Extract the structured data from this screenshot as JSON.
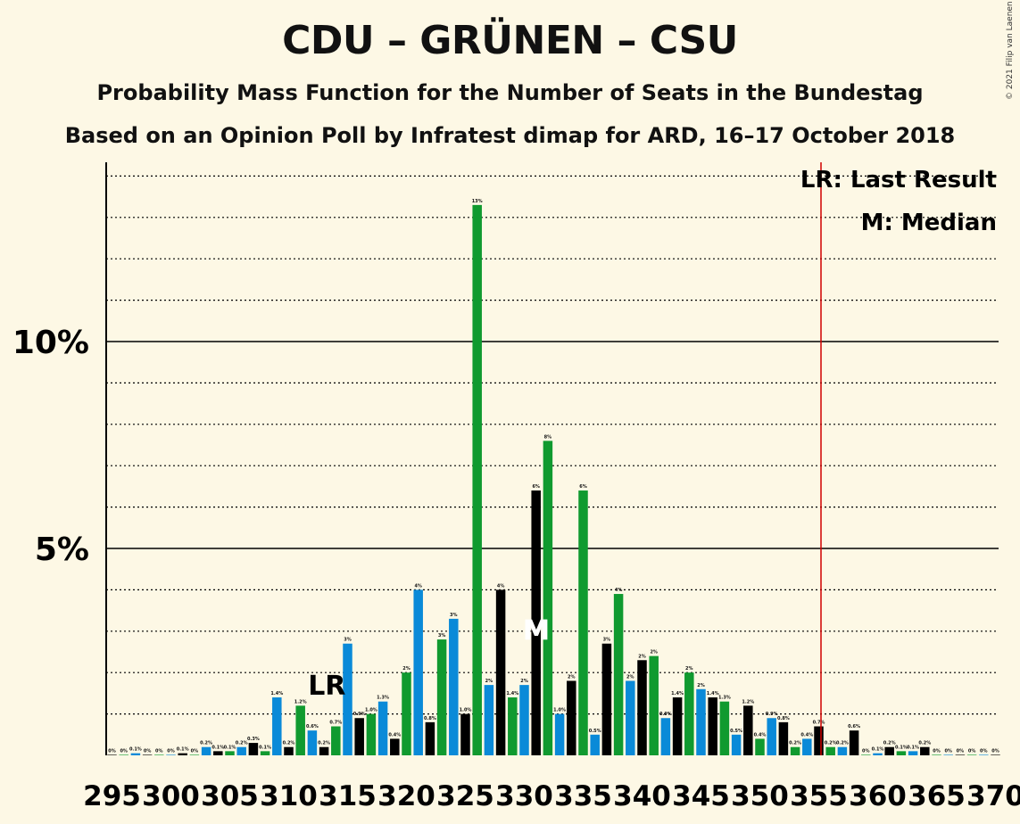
{
  "title": "CDU – GRÜNEN – CSU",
  "subtitle": "Probability Mass Function for the Number of Seats in the Bundestag",
  "subtitle2": "Based on an Opinion Poll by Infratest dimap for ARD, 16–17 October 2018",
  "credit": "© 2021 Filip van Laenen",
  "legend": {
    "last_result": "LR: Last Result",
    "median": "M: Median"
  },
  "markers": {
    "last_result_label": "LR",
    "last_result_seat": 314,
    "median_label": "M",
    "median_seat": 332,
    "majority_line_seat": 355
  },
  "colors": {
    "background": "#fdf8e5",
    "cdu": "#000000",
    "greens": "#109a2f",
    "csu": "#0a8ad8",
    "majority_line": "#d00000"
  },
  "chart_data": {
    "type": "bar",
    "xlabel": "",
    "ylabel": "",
    "x_tick_labels": [
      "295",
      "300",
      "305",
      "310",
      "315",
      "320",
      "325",
      "330",
      "335",
      "340",
      "345",
      "350",
      "355",
      "360",
      "365",
      "370"
    ],
    "y_tick_labels": [
      {
        "value": 5,
        "label": "5%"
      },
      {
        "value": 10,
        "label": "10%"
      }
    ],
    "ylim": [
      0,
      14.3
    ],
    "grid": "dotted every 1%, solid at 5% and 10%",
    "series": [
      {
        "x": [
          295,
          296,
          297,
          298,
          299,
          300,
          301,
          302,
          303,
          304,
          305,
          306,
          307,
          308,
          309,
          310,
          311,
          312,
          313,
          314,
          315,
          316,
          317,
          318,
          319,
          320,
          321,
          322,
          323,
          324,
          325,
          326,
          327,
          328,
          329,
          330,
          331,
          332,
          333,
          334,
          335,
          336,
          337,
          338,
          339,
          340,
          341,
          342,
          343,
          344,
          345,
          346,
          347,
          348,
          349,
          350,
          351,
          352,
          353,
          354,
          355,
          356,
          357,
          358,
          359,
          360,
          361,
          362,
          363,
          364,
          365,
          366,
          367,
          368,
          369,
          370
        ],
        "values": [
          0.01,
          0.01,
          0.05,
          0.01,
          0.01,
          0.01,
          0.05,
          0.01,
          0.2,
          0.1,
          0.1,
          0.2,
          0.3,
          0.1,
          1.4,
          0.2,
          1.2,
          0.6,
          0.2,
          0.7,
          2.7,
          0.9,
          1.0,
          1.3,
          0.4,
          2.0,
          4.0,
          0.8,
          2.8,
          3.3,
          1.0,
          13.3,
          1.7,
          4.0,
          1.4,
          1.7,
          6.4,
          7.6,
          1.0,
          1.8,
          6.4,
          0.5,
          2.7,
          3.9,
          1.8,
          2.3,
          2.4,
          0.9,
          1.4,
          2.0,
          1.6,
          1.4,
          1.3,
          0.5,
          1.2,
          0.4,
          0.9,
          0.8,
          0.2,
          0.4,
          0.7,
          0.2,
          0.2,
          0.6,
          0.01,
          0.05,
          0.2,
          0.1,
          0.1,
          0.2,
          0.01,
          0.01,
          0.01,
          0.01,
          0.01,
          0.01
        ],
        "labels": [
          "0%",
          "0%",
          "0.1%",
          "0%",
          "0%",
          "0%",
          "0.1%",
          "0%",
          "0.2%",
          "0.1%",
          "0.1%",
          "0.2%",
          "0.3%",
          "0.1%",
          "1.4%",
          "0.2%",
          "1.2%",
          "0.6%",
          "0.2%",
          "0.7%",
          "3%",
          "0.9%",
          "1.0%",
          "1.3%",
          "0.4%",
          "2%",
          "4%",
          "0.8%",
          "3%",
          "3%",
          "1.0%",
          "13%",
          "2%",
          "4%",
          "1.4%",
          "2%",
          "6%",
          "8%",
          "1.0%",
          "2%",
          "6%",
          "0.5%",
          "3%",
          "4%",
          "2%",
          "2%",
          "2%",
          "0.9%",
          "1.4%",
          "2%",
          "2%",
          "1.4%",
          "1.3%",
          "0.5%",
          "1.2%",
          "0.4%",
          "0.9%",
          "0.8%",
          "0.2%",
          "0.4%",
          "0.7%",
          "0.2%",
          "0.2%",
          "0.6%",
          "0%",
          "0.1%",
          "0.2%",
          "0.1%",
          "0.1%",
          "0.2%",
          "0%",
          "0%",
          "0%",
          "0%",
          "0%",
          "0%"
        ]
      }
    ]
  }
}
